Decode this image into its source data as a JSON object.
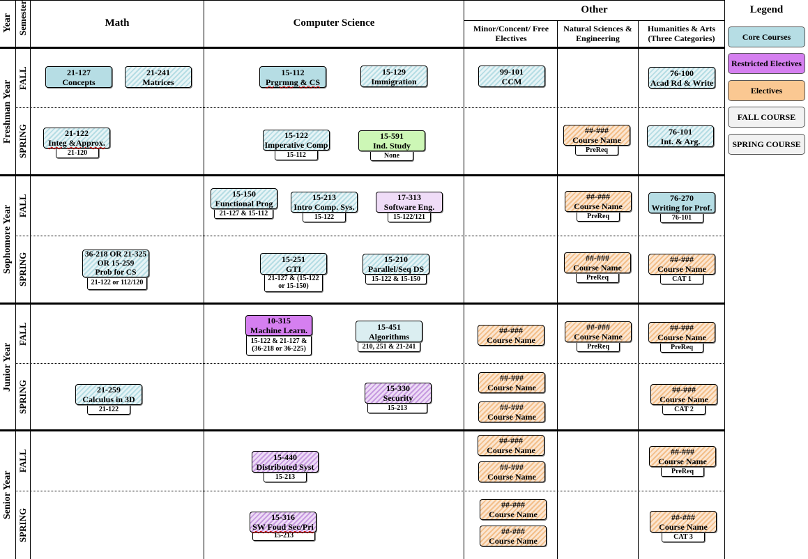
{
  "headers": {
    "year": "Year",
    "semester": "Semester",
    "math": "Math",
    "cs": "Computer Science",
    "other": "Other",
    "minor": "Minor/Concent/ Free Electives",
    "natsci": "Natural Sciences & Engineering",
    "humanities": "Humanities & Arts (Three Categories)",
    "legend": "Legend"
  },
  "years": {
    "freshman": "Freshman Year",
    "sophomore": "Sophomore Year",
    "junior": "Junior Year",
    "senior": "Senior Year"
  },
  "semesters": {
    "fall": "FALL",
    "spring": "SPRING"
  },
  "legend": {
    "core": "Core Courses",
    "restricted": "Restricted Electives",
    "electives": "Electives",
    "fall_course": "FALL COURSE",
    "spring_course": "SPRING COURSE"
  },
  "colors": {
    "core": "#b6dde4",
    "restricted": "#d57ff0",
    "electives": "#fac892",
    "independent_study": "#cdf7b6"
  },
  "courses": {
    "c1": {
      "code": "21-127",
      "name": "Concepts"
    },
    "c2": {
      "code": "21-241",
      "name": "Matrices"
    },
    "c3": {
      "code": "15-112",
      "name": "Prgrmng & CS"
    },
    "c4": {
      "code": "15-129",
      "name": "Immigration"
    },
    "c5": {
      "code": "99-101",
      "name": "CCM"
    },
    "c6": {
      "code": "76-100",
      "name": "Acad Rd & Write"
    },
    "c7": {
      "code": "21-122",
      "name": "Integ &Approx.",
      "prereq": "21-120"
    },
    "c8": {
      "code": "15-122",
      "name": "Imperative Comp",
      "prereq": "15-112"
    },
    "c9": {
      "code": "15-591",
      "name": "Ind. Study",
      "prereq": "None"
    },
    "c10": {
      "code": "##-###",
      "name": "Course Name",
      "prereq": "PreReq"
    },
    "c11": {
      "code": "76-101",
      "name": "Int. & Arg."
    },
    "c12": {
      "code": "15-150",
      "name": "Functional Prog",
      "prereq": "21-127 & 15-112"
    },
    "c13": {
      "code": "15-213",
      "name": "Intro Comp. Sys.",
      "prereq": "15-122"
    },
    "c14": {
      "code": "17-313",
      "name": "Software Eng.",
      "prereq": "15-122/121"
    },
    "c15": {
      "code": "##-###",
      "name": "Course Name",
      "prereq": "PreReq"
    },
    "c16": {
      "code": "76-270",
      "name": "Writing for Prof.",
      "prereq": "76-101"
    },
    "c17": {
      "code": "36-218 OR 21-325 OR 15-259",
      "name": "Prob for CS",
      "prereq": "21-122 or 112/120"
    },
    "c18": {
      "code": "15-251",
      "name": "GTI",
      "prereq": "21-127 & (15-122 or 15-150)"
    },
    "c19": {
      "code": "15-210",
      "name": "Parallel/Seq DS",
      "prereq": "15-122 & 15-150"
    },
    "c20": {
      "code": "##-###",
      "name": "Course Name",
      "prereq": "PreReq"
    },
    "c21": {
      "code": "##-###",
      "name": "Course Name",
      "prereq": "CAT 1"
    },
    "c22": {
      "code": "10-315",
      "name": "Machine Learn.",
      "prereq": "15-122 & 21-127 & (36-218 or 36-225)"
    },
    "c23": {
      "code": "15-451",
      "name": "Algorithms",
      "prereq": "210, 251 & 21-241"
    },
    "c24": {
      "code": "##-###",
      "name": "Course Name"
    },
    "c25": {
      "code": "##-###",
      "name": "Course Name",
      "prereq": "PreReq"
    },
    "c26": {
      "code": "##-###",
      "name": "Course Name",
      "prereq": "PreReq"
    },
    "c27": {
      "code": "21-259",
      "name": "Calculus in 3D",
      "prereq": "21-122"
    },
    "c28": {
      "code": "15-330",
      "name": "Security",
      "prereq": "15-213"
    },
    "c29": {
      "code": "##-###",
      "name": "Course Name"
    },
    "c30": {
      "code": "##-###",
      "name": "Course Name"
    },
    "c31": {
      "code": "##-###",
      "name": "Course Name",
      "prereq": "CAT 2"
    },
    "c32": {
      "code": "15-440",
      "name": "Distributed Syst",
      "prereq": "15-213"
    },
    "c33": {
      "code": "##-###",
      "name": "Course Name"
    },
    "c34": {
      "code": "##-###",
      "name": "Course Name"
    },
    "c35": {
      "code": "##-###",
      "name": "Course Name",
      "prereq": "PreReq"
    },
    "c36": {
      "code": "15-316",
      "name": "SW Foud Sec/Pri",
      "prereq": "15-213"
    },
    "c37": {
      "code": "##-###",
      "name": "Course Name"
    },
    "c38": {
      "code": "##-###",
      "name": "Course Name"
    },
    "c39": {
      "code": "##-###",
      "name": "Course Name",
      "prereq": "CAT 3"
    }
  }
}
